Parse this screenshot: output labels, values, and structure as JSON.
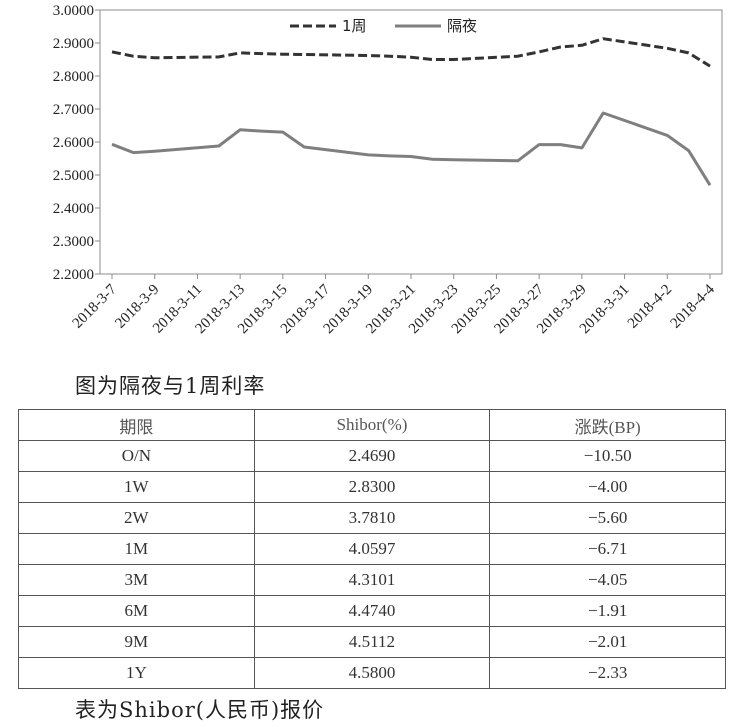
{
  "chart_data": {
    "type": "line",
    "ylim": [
      2.2,
      3.0
    ],
    "yticks": [
      "3.0000",
      "2.9000",
      "2.8000",
      "2.7000",
      "2.6000",
      "2.5000",
      "2.4000",
      "2.3000",
      "2.2000"
    ],
    "xtick_labels": [
      "2018-3-7",
      "2018-3-9",
      "2018-3-11",
      "2018-3-13",
      "2018-3-15",
      "2018-3-17",
      "2018-3-19",
      "2018-3-21",
      "2018-3-23",
      "2018-3-25",
      "2018-3-27",
      "2018-3-29",
      "2018-3-31",
      "2018-4-2",
      "2018-4-4"
    ],
    "x_start": "2018-3-7",
    "x_end": "2018-4-4",
    "legend_position": "top",
    "grid": false,
    "series": [
      {
        "name": "1周",
        "style": "dashed",
        "color": "#333333",
        "points": [
          [
            "2018-3-7",
            2.873
          ],
          [
            "2018-3-8",
            2.86
          ],
          [
            "2018-3-9",
            2.855
          ],
          [
            "2018-3-12",
            2.858
          ],
          [
            "2018-3-13",
            2.87
          ],
          [
            "2018-3-14",
            2.868
          ],
          [
            "2018-3-15",
            2.866
          ],
          [
            "2018-3-16",
            2.865
          ],
          [
            "2018-3-19",
            2.862
          ],
          [
            "2018-3-20",
            2.86
          ],
          [
            "2018-3-21",
            2.857
          ],
          [
            "2018-3-22",
            2.85
          ],
          [
            "2018-3-23",
            2.85
          ],
          [
            "2018-3-26",
            2.86
          ],
          [
            "2018-3-27",
            2.873
          ],
          [
            "2018-3-28",
            2.888
          ],
          [
            "2018-3-29",
            2.893
          ],
          [
            "2018-3-30",
            2.913
          ],
          [
            "2018-4-2",
            2.884
          ],
          [
            "2018-4-3",
            2.87
          ],
          [
            "2018-4-4",
            2.83
          ]
        ]
      },
      {
        "name": "隔夜",
        "style": "solid",
        "color": "#7f7f7f",
        "points": [
          [
            "2018-3-7",
            2.593
          ],
          [
            "2018-3-8",
            2.568
          ],
          [
            "2018-3-9",
            2.572
          ],
          [
            "2018-3-12",
            2.588
          ],
          [
            "2018-3-13",
            2.637
          ],
          [
            "2018-3-14",
            2.633
          ],
          [
            "2018-3-15",
            2.63
          ],
          [
            "2018-3-16",
            2.585
          ],
          [
            "2018-3-19",
            2.561
          ],
          [
            "2018-3-20",
            2.558
          ],
          [
            "2018-3-21",
            2.556
          ],
          [
            "2018-3-22",
            2.548
          ],
          [
            "2018-3-23",
            2.546
          ],
          [
            "2018-3-26",
            2.543
          ],
          [
            "2018-3-27",
            2.592
          ],
          [
            "2018-3-28",
            2.592
          ],
          [
            "2018-3-29",
            2.582
          ],
          [
            "2018-3-30",
            2.688
          ],
          [
            "2018-4-2",
            2.62
          ],
          [
            "2018-4-3",
            2.574
          ],
          [
            "2018-4-4",
            2.469
          ]
        ]
      }
    ]
  },
  "captions": {
    "chart": "图为隔夜与1周利率",
    "table": "表为Shibor(人民币)报价"
  },
  "table": {
    "headers": [
      "期限",
      "Shibor(%)",
      "涨跌(BP)"
    ],
    "rows": [
      [
        "O/N",
        "2.4690",
        "−10.50"
      ],
      [
        "1W",
        "2.8300",
        "−4.00"
      ],
      [
        "2W",
        "3.7810",
        "−5.60"
      ],
      [
        "1M",
        "4.0597",
        "−6.71"
      ],
      [
        "3M",
        "4.3101",
        "−4.05"
      ],
      [
        "6M",
        "4.4740",
        "−1.91"
      ],
      [
        "9M",
        "4.5112",
        "−2.01"
      ],
      [
        "1Y",
        "4.5800",
        "−2.33"
      ]
    ]
  }
}
